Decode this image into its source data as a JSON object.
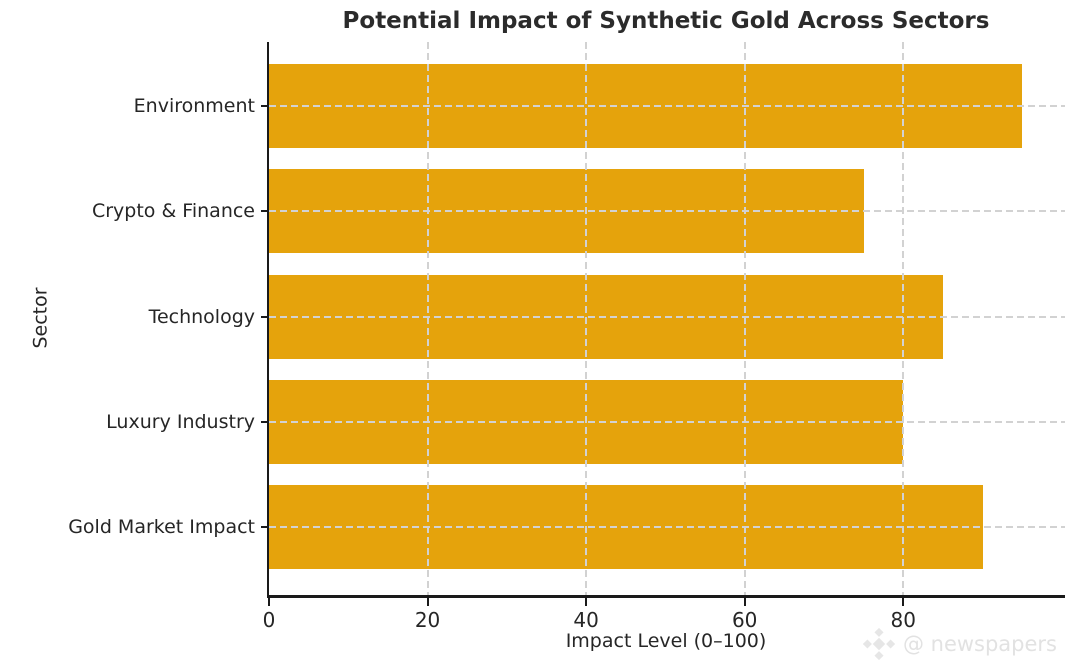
{
  "chart_data": {
    "type": "bar",
    "orientation": "horizontal",
    "title": "Potential Impact of Synthetic Gold Across Sectors",
    "xlabel": "Impact Level (0–100)",
    "ylabel": "Sector",
    "categories": [
      "Environment",
      "Crypto & Finance",
      "Technology",
      "Luxury Industry",
      "Gold Market Impact"
    ],
    "values": [
      95,
      75,
      85,
      80,
      90
    ],
    "xticks": [
      0,
      20,
      40,
      60,
      80
    ],
    "xlim": [
      0,
      100.4
    ],
    "grid": "both, dashed, drawn above bars",
    "legend": "none",
    "bar_color": "#E5A30C",
    "axis_color": "#1a1a1a",
    "grid_color": "#d2d2d2",
    "text_color": "#262626"
  },
  "watermark": {
    "handle": "@ newspapers",
    "icon": "diamond-logo-icon"
  }
}
